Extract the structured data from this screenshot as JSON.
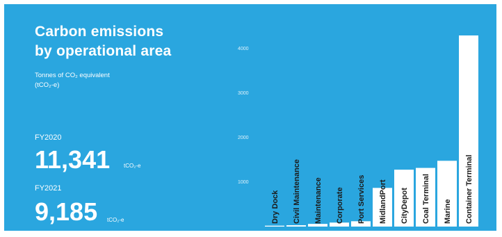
{
  "header": {
    "title_line1": "Carbon emissions",
    "title_line2": "by operational area",
    "subtitle_line1": "Tonnes of CO₂ equivalent",
    "subtitle_line2": "(tCO₂-e)"
  },
  "fy2020": {
    "label": "FY2020",
    "value": "11,341",
    "unit": "tCO₂-e"
  },
  "fy2021": {
    "label": "FY2021",
    "value": "9,185",
    "unit": "tCO₂-e"
  },
  "colors": {
    "panel": "#2aa6df",
    "bar": "#ffffff",
    "label_text": "#1b1b1b"
  },
  "chart_data": {
    "type": "bar",
    "orientation": "vertical",
    "categories": [
      "Dry Dock",
      "Civil Maintenance",
      "Maintenance",
      "Corporate",
      "Port Services",
      "MidlandPort",
      "CityDepot",
      "Coal Terminal",
      "Marine",
      "Container Terminal"
    ],
    "values": [
      20,
      30,
      60,
      90,
      120,
      870,
      1280,
      1320,
      1480,
      4300
    ],
    "ylim": [
      0,
      4300
    ],
    "yticks": [
      1000,
      2000,
      3000,
      4000
    ],
    "ytick_labels": [
      "1000",
      "2000",
      "3000",
      "4000"
    ],
    "grid": false,
    "legend": "none"
  }
}
